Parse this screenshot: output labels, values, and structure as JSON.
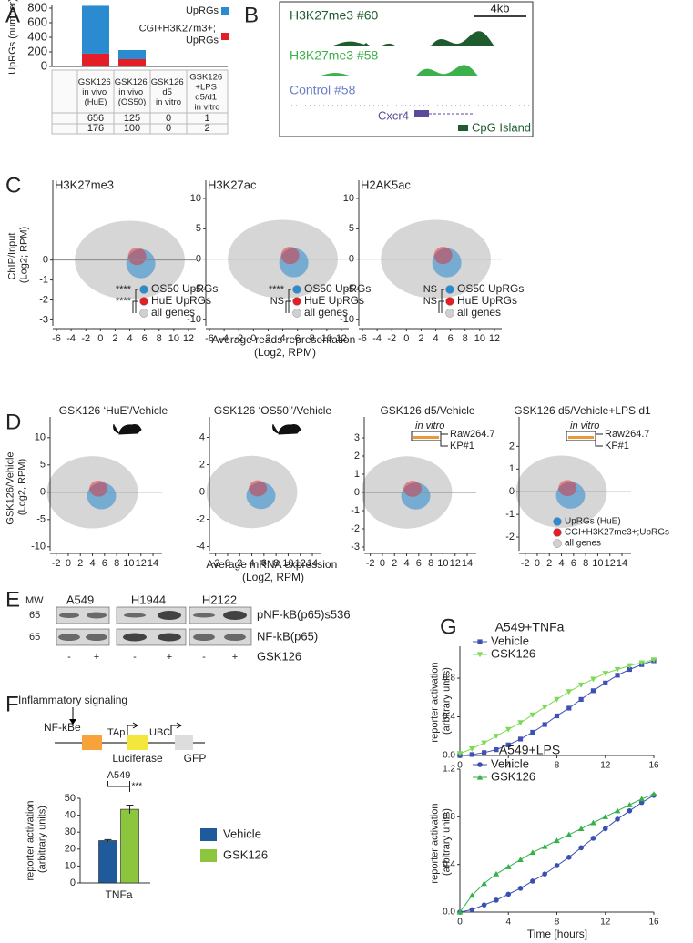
{
  "panel_labels": [
    "A",
    "B",
    "C",
    "D",
    "E",
    "F",
    "G"
  ],
  "chart_data": [
    {
      "type": "bar",
      "stacked": true,
      "ylabel": "UpRGs (number)",
      "categories": [
        "GSK126\nin vivo\n(HuE)",
        "GSK126\nin vivo\n(OS50)",
        "GSK126\nd5\nin vitro",
        "GSK126\n+LPS\nd5/d1\nin vitro"
      ],
      "series": [
        {
          "name": "UpRGs",
          "color": "#2a8bd0",
          "values": [
            656,
            125,
            0,
            1
          ]
        },
        {
          "name": "CGI+H3K27m3+;\nUpRGs",
          "color": "#e41e26",
          "values": [
            176,
            100,
            0,
            2
          ]
        }
      ],
      "ylim": [
        0,
        850
      ],
      "yticks": [
        0,
        200,
        400,
        600,
        800
      ]
    },
    {
      "type": "scatter",
      "title": "H3K27me3",
      "ylabel": "ChIP/Input\n(Log2; RPM)",
      "xlim": [
        -6.5,
        13
      ],
      "xticks": [
        -6,
        -4,
        -2,
        0,
        2,
        4,
        6,
        8,
        10,
        12
      ],
      "ylim": [
        -3.3,
        4
      ],
      "yticks": [
        -3,
        -2,
        -1,
        0
      ],
      "legend": [
        {
          "name": "OS50 UpRGs",
          "color": "#2a8bd0"
        },
        {
          "name": "HuE UpRGs",
          "color": "#e41e26"
        },
        {
          "name": "all genes",
          "color": "#d0d0d0"
        }
      ],
      "significance": [
        "****",
        "****"
      ]
    },
    {
      "type": "scatter",
      "title": "H3K27ac",
      "xlabel": "Average reads representation\n(Log2, RPM)",
      "xlim": [
        -6.5,
        13
      ],
      "xticks": [
        -6,
        -4,
        -2,
        0,
        2,
        4,
        6,
        8,
        10,
        12
      ],
      "ylim": [
        -11,
        13
      ],
      "yticks": [
        -10,
        -5,
        0,
        5,
        10
      ],
      "legend": [
        {
          "name": "OS50 UpRGs",
          "color": "#2a8bd0"
        },
        {
          "name": "HuE UpRGs",
          "color": "#e41e26"
        },
        {
          "name": "all genes",
          "color": "#d0d0d0"
        }
      ],
      "significance": [
        "****",
        "NS"
      ]
    },
    {
      "type": "scatter",
      "title": "H2AK5ac",
      "xlim": [
        -6.5,
        13
      ],
      "xticks": [
        -6,
        -4,
        -2,
        0,
        2,
        4,
        6,
        8,
        10,
        12
      ],
      "ylim": [
        -11,
        13
      ],
      "yticks": [
        -10,
        -5,
        0,
        5,
        10
      ],
      "legend": [
        {
          "name": "OS50 UpRGs",
          "color": "#2a8bd0"
        },
        {
          "name": "HuE UpRGs",
          "color": "#e41e26"
        },
        {
          "name": "all genes",
          "color": "#d0d0d0"
        }
      ],
      "significance": [
        "NS",
        "NS"
      ]
    },
    {
      "type": "scatter",
      "title": "GSK126 ‘HuE’/Vehicle",
      "ylabel": "GSK126/Vehicle\n(Log2, RPM)",
      "xlim": [
        -3,
        15.5
      ],
      "xticks": [
        -2,
        0,
        2,
        4,
        6,
        8,
        10,
        12,
        14
      ],
      "ylim": [
        -10.7,
        13.8
      ],
      "yticks": [
        -10,
        -5,
        0,
        5,
        10
      ]
    },
    {
      "type": "scatter",
      "title": "GSK126 ‘OS50’’/Vehicle",
      "xlabel": "Average mRNA expression\n(Log2, RPM)",
      "xlim": [
        -3,
        15.5
      ],
      "xticks": [
        -2,
        0,
        2,
        4,
        6,
        8,
        10,
        12,
        14
      ],
      "ylim": [
        -4.3,
        5.5
      ],
      "yticks": [
        -4,
        -2,
        0,
        2,
        4
      ]
    },
    {
      "type": "scatter",
      "title": "GSK126 d5/Vehicle",
      "annotations": [
        "in vitro",
        "Raw264.7",
        "KP#1"
      ],
      "xlim": [
        -3,
        15.5
      ],
      "xticks": [
        -2,
        0,
        2,
        4,
        6,
        8,
        10,
        12,
        14
      ],
      "ylim": [
        -3.2,
        4.15
      ],
      "yticks": [
        -3,
        -2,
        -1,
        0,
        1,
        2,
        3
      ]
    },
    {
      "type": "scatter",
      "title": "GSK126 d5/Vehicle+LPS d1",
      "annotations": [
        "in vitro",
        "Raw264.7",
        "KP#1"
      ],
      "xlim": [
        -3,
        15.5
      ],
      "xticks": [
        -2,
        0,
        2,
        4,
        6,
        8,
        10,
        12,
        14
      ],
      "ylim": [
        -2.6,
        3.3
      ],
      "yticks": [
        -2,
        -1,
        0,
        1,
        2
      ],
      "legend": [
        {
          "name": "UpRGs (HuE)",
          "color": "#2a8bd0"
        },
        {
          "name": "CGI+H3K27me3+;UpRGs",
          "color": "#e41e26"
        },
        {
          "name": "all genes",
          "color": "#d0d0d0"
        }
      ]
    },
    {
      "type": "bar",
      "title": "A549",
      "ylabel": "reporter activation\n(arbitrary units)",
      "categories": [
        "TNFa"
      ],
      "series": [
        {
          "name": "Vehicle",
          "color": "#1f5b9a",
          "values": [
            25
          ],
          "errors": [
            0.6
          ]
        },
        {
          "name": "GSK126",
          "color": "#8cc63e",
          "values": [
            43.5
          ],
          "errors": [
            2.5
          ]
        }
      ],
      "ylim": [
        0,
        50
      ],
      "yticks": [
        0,
        10,
        20,
        30,
        40,
        50
      ],
      "significance": "***"
    },
    {
      "type": "line",
      "title": "A549+TNFa",
      "ylabel": "reporter activation\n(arbitrary units)",
      "x": [
        0,
        1,
        2,
        3,
        4,
        5,
        6,
        7,
        8,
        9,
        10,
        11,
        12,
        13,
        14,
        15,
        16
      ],
      "series": [
        {
          "name": "Vehicle",
          "color": "#3f51b5",
          "marker": "square",
          "values": [
            0,
            0.01,
            0.03,
            0.06,
            0.11,
            0.17,
            0.24,
            0.32,
            0.41,
            0.49,
            0.58,
            0.67,
            0.75,
            0.83,
            0.89,
            0.94,
            0.98
          ]
        },
        {
          "name": "GSK126",
          "color": "#7ed957",
          "marker": "triangle-down",
          "values": [
            0.02,
            0.07,
            0.13,
            0.2,
            0.27,
            0.34,
            0.42,
            0.5,
            0.58,
            0.66,
            0.73,
            0.79,
            0.85,
            0.89,
            0.93,
            0.96,
            0.99
          ]
        }
      ],
      "xlim": [
        0,
        16
      ],
      "xticks": [
        0,
        4,
        8,
        12,
        16
      ],
      "ylim": [
        0,
        1.13
      ],
      "yticks": [
        {
          "value": 0,
          "label": "0.0"
        },
        0.4,
        0.8
      ]
    },
    {
      "type": "line",
      "title": "A549+LPS",
      "ylabel": "reporter activation\n(arbitrary units)",
      "xlabel": "Time [hours]",
      "x": [
        0,
        1,
        2,
        3,
        4,
        5,
        6,
        7,
        8,
        9,
        10,
        11,
        12,
        13,
        14,
        15,
        16
      ],
      "series": [
        {
          "name": "Vehicle",
          "color": "#3a4fb0",
          "marker": "circle",
          "values": [
            0,
            0.02,
            0.06,
            0.1,
            0.15,
            0.2,
            0.26,
            0.32,
            0.39,
            0.46,
            0.54,
            0.62,
            0.7,
            0.78,
            0.85,
            0.92,
            0.98
          ]
        },
        {
          "name": "GSK126",
          "color": "#33b24a",
          "marker": "triangle",
          "values": [
            0,
            0.14,
            0.24,
            0.32,
            0.38,
            0.44,
            0.5,
            0.55,
            0.6,
            0.65,
            0.7,
            0.75,
            0.8,
            0.85,
            0.9,
            0.95,
            0.99
          ]
        }
      ],
      "xlim": [
        0,
        16
      ],
      "xticks": [
        0,
        4,
        8,
        12,
        16
      ],
      "ylim": [
        0,
        1.2
      ],
      "yticks": [
        {
          "value": 0,
          "label": "0.0"
        },
        0.4,
        0.8,
        1.2
      ]
    }
  ],
  "genome_tracks": {
    "tracks": [
      "H3K27me3 #60",
      "H3K27me3 #58",
      "Control #58"
    ],
    "scale_bar": "4kb",
    "gene": "Cxcr4",
    "feature": "CpG Island"
  },
  "western_blot": {
    "mw_label": "MW",
    "cell_lines": [
      "A549",
      "H1944",
      "H2122"
    ],
    "mw": [
      65,
      65
    ],
    "antibodies": [
      "pNF-kB(p65)s536",
      "NF-kB(p65)"
    ],
    "treatment": [
      "-",
      "+",
      "-",
      "+",
      "-",
      "+"
    ],
    "treatment_label": "GSK126"
  },
  "reporter_construct": {
    "signal": "Inflammatory signaling",
    "elements": [
      "NF-kBe",
      "TAp",
      "UBC",
      "Luciferase",
      "GFP"
    ]
  }
}
